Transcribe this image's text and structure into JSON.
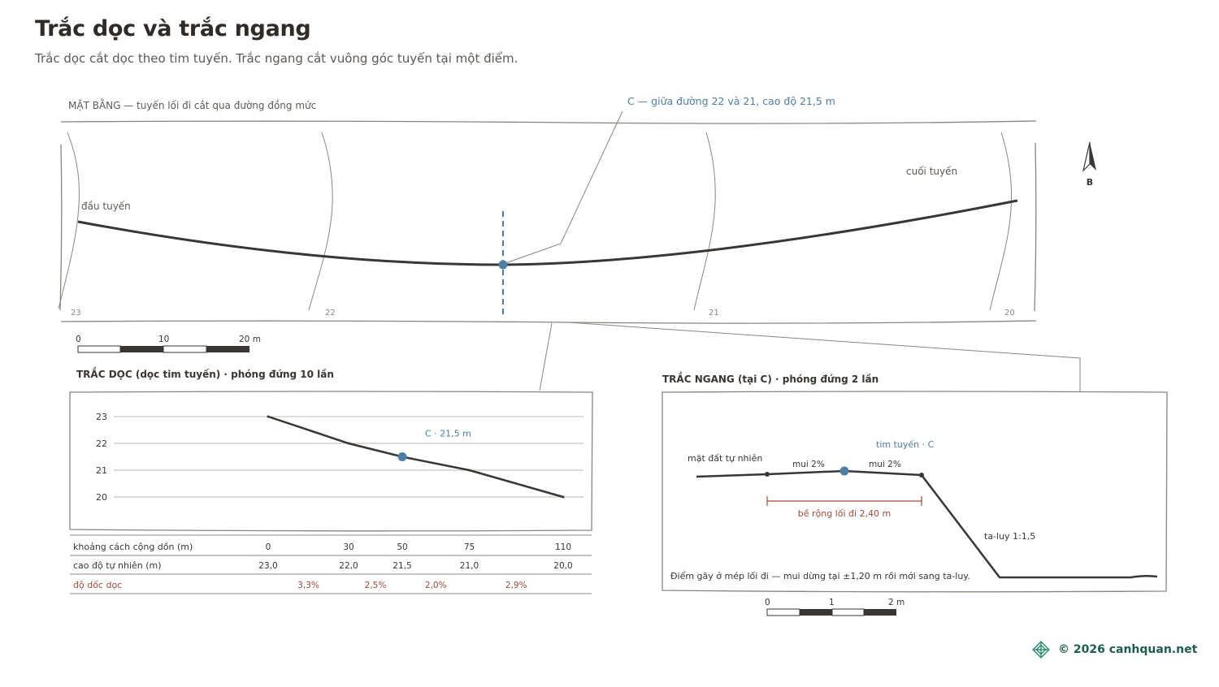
{
  "header": {
    "title": "Trắc dọc và trắc ngang",
    "subtitle": "Trắc dọc cắt dọc theo tim tuyến. Trắc ngang cắt vuông góc tuyến tại một điểm."
  },
  "plan": {
    "label": "MẶT BẰNG — tuyến lối đi cắt qua đường đồng mức",
    "callout": "C — giữa đường 22 và 21, cao độ 21,5 m",
    "start_label": "đầu tuyến",
    "end_label": "cuối tuyến",
    "contour_labels": [
      "23",
      "22",
      "21",
      "20"
    ],
    "north_label": "B",
    "scale_labels": [
      "0",
      "10",
      "20 m"
    ]
  },
  "profile": {
    "title": "TRẮC DỌC (dọc tim tuyến) · phóng đứng 10 lần",
    "y_ticks": [
      "23",
      "22",
      "21",
      "20"
    ],
    "point_label": "C · 21,5 m",
    "table": {
      "row_labels": [
        "khoảng cách cộng dồn (m)",
        "cao độ tự nhiên (m)",
        "độ dốc dọc"
      ],
      "distances": [
        "0",
        "30",
        "50",
        "75",
        "110"
      ],
      "elevations": [
        "23,0",
        "22,0",
        "21,5",
        "21,0",
        "20,0"
      ],
      "slopes": [
        "3,3%",
        "2,5%",
        "2,0%",
        "2,9%"
      ]
    }
  },
  "cross": {
    "title": "TRẮC NGANG (tại C) · phóng đứng 2 lần",
    "ground_label": "mặt đất tự nhiên",
    "center_label": "tim tuyến · C",
    "camber_left": "mui 2%",
    "camber_right": "mui 2%",
    "width_label": "bề rộng lối đi 2,40 m",
    "slope_label": "ta-luy 1:1,5",
    "note": "Điểm gãy ở mép lối đi — mui dừng tại ±1,20 m rồi mới sang ta-luy.",
    "scale_labels": [
      "0",
      "1",
      "2 m"
    ]
  },
  "footer": {
    "copyright": "© 2026 canhquan.net",
    "logo_icon": "knot-icon"
  },
  "colors": {
    "ink": "#3a3633",
    "accent_blue": "#4f7ea4",
    "accent_red": "#a04a3c",
    "frame": "#8a857f",
    "grid": "#bdb8b2",
    "brand_green": "#1f5d4f"
  },
  "chart_data": {
    "type": "line",
    "title": "TRẮC DỌC (dọc tim tuyến) · phóng đứng 10 lần",
    "x": [
      0,
      30,
      50,
      75,
      110
    ],
    "values": [
      23.0,
      22.0,
      21.5,
      21.0,
      20.0
    ],
    "ylim": [
      20,
      23
    ],
    "highlight": {
      "x": 50,
      "y": 21.5,
      "label": "C · 21,5 m"
    }
  }
}
